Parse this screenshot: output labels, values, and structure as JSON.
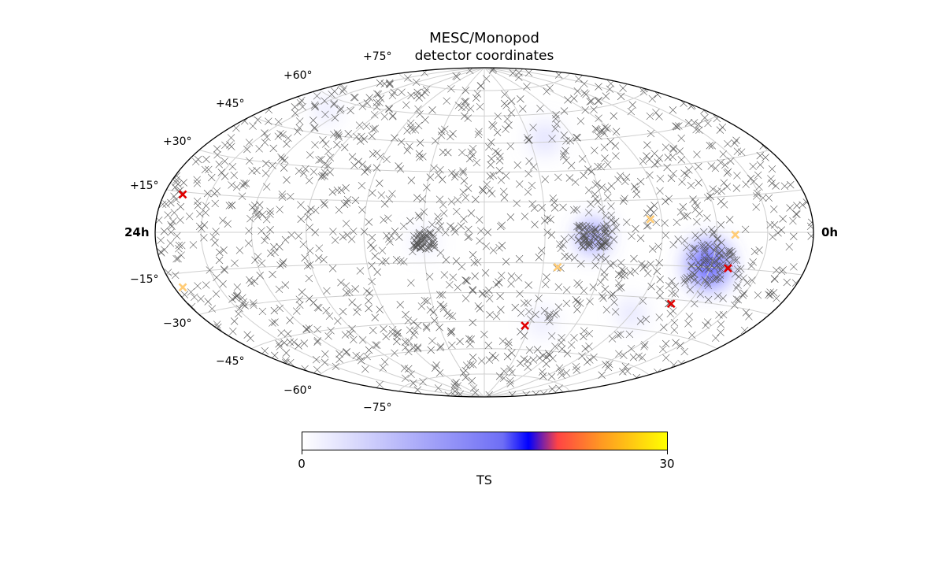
{
  "chart_data": {
    "type": "scatter",
    "projection": "hammer-aitoff",
    "title": "MESC/Monopod",
    "subtitle": "detector coordinates",
    "ra_labels": {
      "left": "24h",
      "right": "0h"
    },
    "dec_labels": [
      "+75°",
      "+60°",
      "+45°",
      "+30°",
      "+15°",
      "−15°",
      "−30°",
      "−45°",
      "−60°",
      "−75°"
    ],
    "grid": true,
    "colorbar": {
      "label": "TS",
      "min": 0,
      "max": 30,
      "tick_labels": [
        "0",
        "30"
      ],
      "colors": [
        "#ffffff",
        "#0000ff",
        "#ff4444",
        "#ffff00"
      ]
    },
    "ts_hotspots": [
      {
        "ra_h": 19.9,
        "dec_deg": -14,
        "sigma_deg": 11,
        "ts": 12
      },
      {
        "ra_h": 15.6,
        "dec_deg": -2,
        "sigma_deg": 7,
        "ts": 11
      },
      {
        "ra_h": 10.0,
        "dec_deg": -4,
        "sigma_deg": 5,
        "ts": 5
      },
      {
        "ra_h": 18.0,
        "dec_deg": -38,
        "sigma_deg": 6,
        "ts": 5
      },
      {
        "ra_h": 14.5,
        "dec_deg": -45,
        "sigma_deg": 6,
        "ts": 4
      },
      {
        "ra_h": 14.7,
        "dec_deg": 47,
        "sigma_deg": 7,
        "ts": 5
      },
      {
        "ra_h": 3.0,
        "dec_deg": 55,
        "sigma_deg": 5,
        "ts": 5
      }
    ],
    "highlight_events": [
      {
        "ra_h": 20.7,
        "dec_deg": -15,
        "color": "#e00000"
      },
      {
        "ra_h": 19.3,
        "dec_deg": -32,
        "color": "#e00000"
      },
      {
        "ra_h": 13.8,
        "dec_deg": -47,
        "color": "#e00000"
      },
      {
        "ra_h": 0.85,
        "dec_deg": 14,
        "color": "#e00000"
      },
      {
        "ra_h": 20.7,
        "dec_deg": -1,
        "color": "#ffcc77"
      },
      {
        "ra_h": 17.6,
        "dec_deg": 6,
        "color": "#ffcc77"
      },
      {
        "ra_h": 14.5,
        "dec_deg": -17,
        "color": "#ffcc77"
      },
      {
        "ra_h": 0.4,
        "dec_deg": -20,
        "color": "#ffcc77"
      }
    ],
    "background_events": {
      "count": 1500,
      "marker": "x",
      "color": "#555555"
    }
  }
}
